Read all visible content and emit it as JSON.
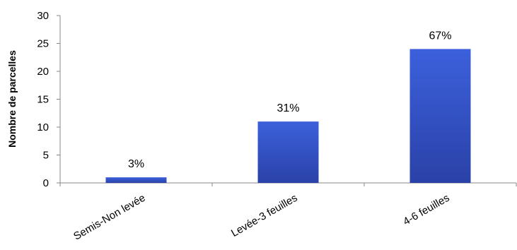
{
  "chart_data": {
    "type": "bar",
    "categories": [
      "Semis-Non levée",
      "Levée-3 feuilles",
      "4-6 feuilles"
    ],
    "values": [
      1,
      11,
      24
    ],
    "data_labels": [
      "3%",
      "31%",
      "67%"
    ],
    "title": "",
    "xlabel": "",
    "ylabel": "Nombre de parcelles",
    "ylim": [
      0,
      30
    ],
    "yticks": [
      0,
      5,
      10,
      15,
      20,
      25,
      30
    ],
    "grid": false,
    "legend": "none",
    "bar_color": "#3050c8",
    "bar_color_light": "#3c60dc",
    "bar_color_dark": "#2a42a8"
  }
}
